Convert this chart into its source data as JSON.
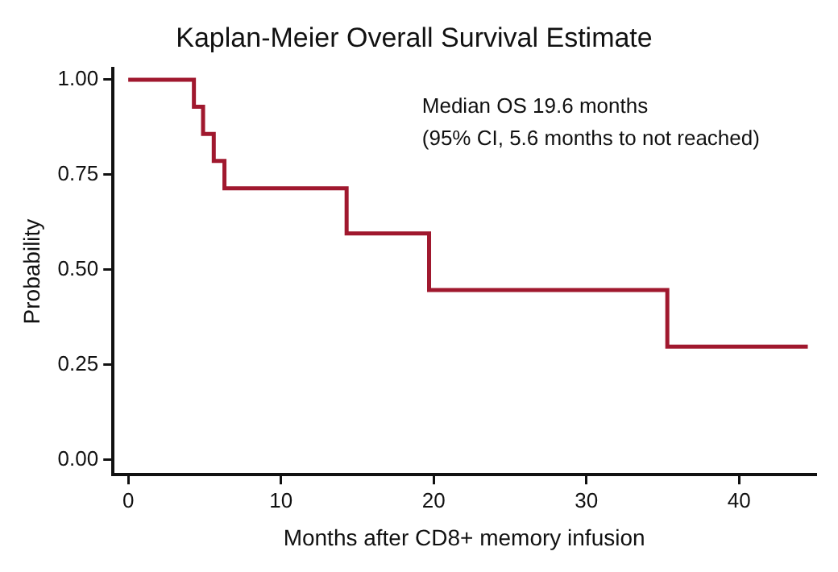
{
  "chart_data": {
    "type": "step",
    "title": "Kaplan-Meier Overall Survival Estimate",
    "xlabel": "Months after CD8+ memory infusion",
    "ylabel": "Probability",
    "annotations": [
      "Median OS 19.6 months",
      "(95% CI, 5.6 months to not reached)"
    ],
    "x": [
      0,
      4.3,
      4.9,
      5.6,
      6.3,
      14.3,
      19.7,
      35.3,
      44.5
    ],
    "series": [
      {
        "color": "#a0182e",
        "values": [
          1,
          0.929,
          0.857,
          0.786,
          0.714,
          0.595,
          0.446,
          0.297,
          0.297
        ]
      }
    ],
    "xlim": [
      -1,
      45
    ],
    "xticks": [
      0,
      10,
      20,
      30,
      40
    ],
    "ylim": [
      -0.04,
      1.03
    ],
    "yticks": [
      {
        "value": 0,
        "label": "0.00"
      },
      {
        "value": 0.25,
        "label": "0.25"
      },
      {
        "value": 0.5,
        "label": "0.50"
      },
      {
        "value": 0.75,
        "label": "0.75"
      },
      {
        "value": 1,
        "label": "1.00"
      }
    ],
    "grid": false,
    "legend": false,
    "marker": "none",
    "line_style": "solid"
  }
}
